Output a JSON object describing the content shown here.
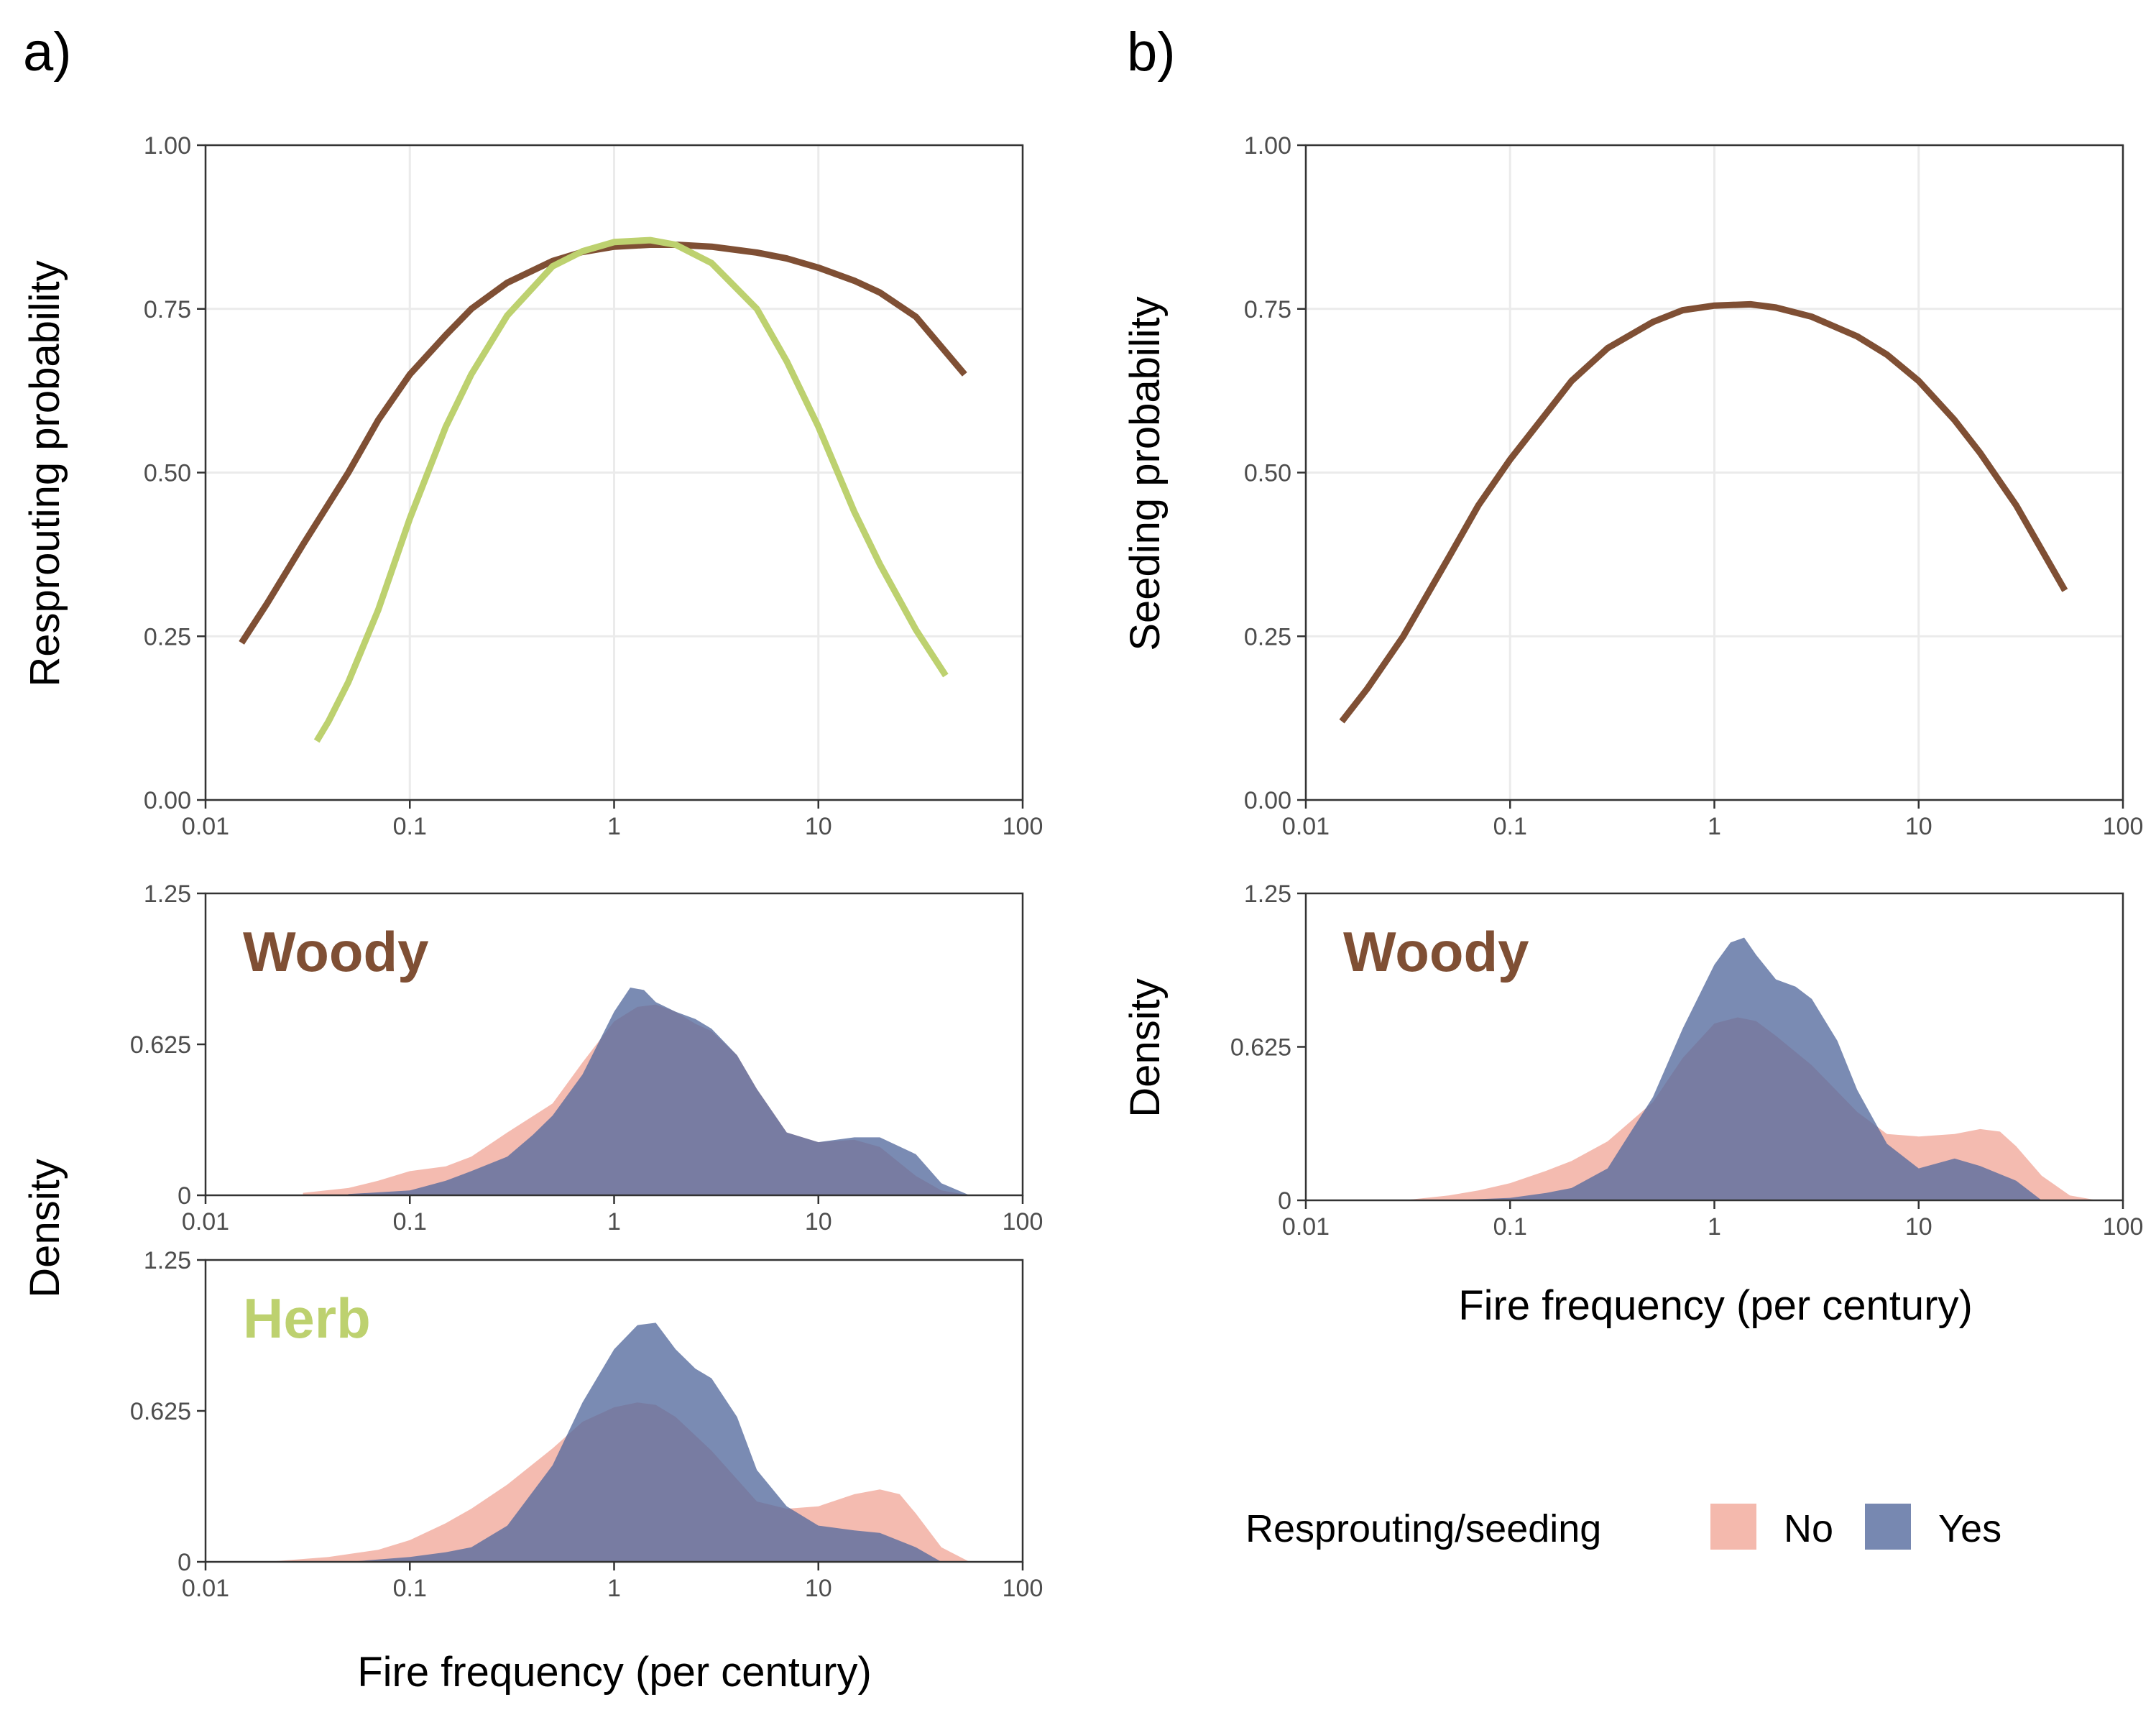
{
  "figure": {
    "panel_letters": [
      "a)",
      "b)"
    ],
    "x_axis_title": "Fire frequency (per century)",
    "legend": {
      "title": "Resprouting/seeding",
      "items": [
        "No",
        "Yes"
      ]
    },
    "colors": {
      "woody": "#7f4f34",
      "herb": "#bdd16f",
      "no": "#f0a191",
      "yes": "#556a9e",
      "overlap": "#736384",
      "grid": "#ebebeb"
    }
  },
  "chart_data": [
    {
      "id": "resprouting-curves",
      "type": "line",
      "ylabel": "Resprouting probability",
      "xlabel": "",
      "x_scale": "log10",
      "xlim": [
        0.01,
        100
      ],
      "ylim": [
        0,
        1
      ],
      "x_ticks": [
        "0.01",
        "0.1",
        "1",
        "10",
        "100"
      ],
      "y_ticks": [
        "0.00",
        "0.25",
        "0.50",
        "0.75",
        "1.00"
      ],
      "grid": true,
      "series": [
        {
          "group": "woody",
          "x": [
            0.015,
            0.02,
            0.03,
            0.05,
            0.07,
            0.1,
            0.15,
            0.2,
            0.3,
            0.5,
            0.7,
            1,
            1.5,
            2,
            3,
            5,
            7,
            10,
            15,
            20,
            30,
            52
          ],
          "y": [
            0.24,
            0.3,
            0.39,
            0.5,
            0.58,
            0.65,
            0.71,
            0.75,
            0.79,
            0.823,
            0.837,
            0.845,
            0.848,
            0.848,
            0.845,
            0.836,
            0.827,
            0.813,
            0.793,
            0.775,
            0.738,
            0.65
          ]
        },
        {
          "group": "herb",
          "x": [
            0.035,
            0.04,
            0.05,
            0.07,
            0.1,
            0.15,
            0.2,
            0.3,
            0.5,
            0.7,
            1,
            1.5,
            2,
            3,
            5,
            7,
            10,
            15,
            20,
            30,
            42
          ],
          "y": [
            0.09,
            0.12,
            0.18,
            0.29,
            0.43,
            0.57,
            0.65,
            0.74,
            0.815,
            0.838,
            0.852,
            0.855,
            0.848,
            0.82,
            0.75,
            0.67,
            0.57,
            0.44,
            0.36,
            0.26,
            0.19
          ]
        }
      ]
    },
    {
      "id": "woody-resprouting-density",
      "type": "area",
      "group_label": "Woody",
      "x_scale": "log10",
      "xlim": [
        0.01,
        100
      ],
      "ylim": [
        0,
        1.25
      ],
      "x_ticks": [
        "0.01",
        "0.1",
        "1",
        "10",
        "100"
      ],
      "y_ticks": [
        "0",
        "0.625",
        "1.25"
      ],
      "grid": false,
      "series": [
        {
          "name": "No",
          "x": [
            0.03,
            0.05,
            0.07,
            0.1,
            0.15,
            0.2,
            0.3,
            0.5,
            0.7,
            1,
            1.3,
            1.6,
            2,
            2.5,
            3,
            4,
            5,
            7,
            10,
            15,
            20,
            30,
            40,
            55
          ],
          "y": [
            0.01,
            0.03,
            0.06,
            0.1,
            0.12,
            0.16,
            0.26,
            0.38,
            0.55,
            0.72,
            0.78,
            0.79,
            0.76,
            0.71,
            0.68,
            0.58,
            0.44,
            0.26,
            0.22,
            0.23,
            0.2,
            0.08,
            0.02,
            0.0
          ]
        },
        {
          "name": "Yes",
          "x": [
            0.05,
            0.1,
            0.15,
            0.2,
            0.3,
            0.4,
            0.5,
            0.7,
            1,
            1.2,
            1.4,
            1.6,
            2,
            2.5,
            3,
            4,
            5,
            7,
            10,
            15,
            20,
            30,
            40,
            55
          ],
          "y": [
            0.005,
            0.02,
            0.06,
            0.1,
            0.16,
            0.25,
            0.33,
            0.5,
            0.76,
            0.86,
            0.85,
            0.8,
            0.76,
            0.73,
            0.69,
            0.58,
            0.44,
            0.26,
            0.22,
            0.24,
            0.24,
            0.17,
            0.05,
            0.0
          ]
        }
      ]
    },
    {
      "id": "herb-resprouting-density",
      "type": "area",
      "group_label": "Herb",
      "x_scale": "log10",
      "xlim": [
        0.01,
        100
      ],
      "ylim": [
        0,
        1.25
      ],
      "x_ticks": [
        "0.01",
        "0.1",
        "1",
        "10",
        "100"
      ],
      "y_ticks": [
        "0",
        "0.625",
        "1.25"
      ],
      "grid": false,
      "series": [
        {
          "name": "No",
          "x": [
            0.02,
            0.04,
            0.07,
            0.1,
            0.15,
            0.2,
            0.3,
            0.5,
            0.7,
            1,
            1.3,
            1.6,
            2,
            3,
            5,
            7,
            10,
            15,
            20,
            25,
            30,
            40,
            55
          ],
          "y": [
            0.0,
            0.02,
            0.05,
            0.09,
            0.16,
            0.22,
            0.32,
            0.47,
            0.58,
            0.64,
            0.66,
            0.65,
            0.6,
            0.46,
            0.25,
            0.22,
            0.23,
            0.28,
            0.3,
            0.28,
            0.2,
            0.06,
            0.0
          ]
        },
        {
          "name": "Yes",
          "x": [
            0.05,
            0.1,
            0.15,
            0.2,
            0.3,
            0.5,
            0.7,
            1,
            1.3,
            1.6,
            2,
            2.5,
            3,
            4,
            5,
            7,
            10,
            15,
            20,
            30,
            40
          ],
          "y": [
            0.0,
            0.02,
            0.04,
            0.06,
            0.15,
            0.4,
            0.66,
            0.88,
            0.98,
            0.99,
            0.88,
            0.8,
            0.76,
            0.6,
            0.38,
            0.23,
            0.15,
            0.13,
            0.12,
            0.06,
            0.0
          ]
        }
      ]
    },
    {
      "id": "seeding-curve",
      "type": "line",
      "ylabel": "Seeding probability",
      "xlabel": "",
      "x_scale": "log10",
      "xlim": [
        0.01,
        100
      ],
      "ylim": [
        0,
        1
      ],
      "x_ticks": [
        "0.01",
        "0.1",
        "1",
        "10",
        "100"
      ],
      "y_ticks": [
        "0.00",
        "0.25",
        "0.50",
        "0.75",
        "1.00"
      ],
      "grid": true,
      "series": [
        {
          "group": "woody",
          "x": [
            0.015,
            0.02,
            0.03,
            0.05,
            0.07,
            0.1,
            0.15,
            0.2,
            0.3,
            0.5,
            0.7,
            1,
            1.5,
            2,
            3,
            5,
            7,
            10,
            15,
            20,
            30,
            52
          ],
          "y": [
            0.12,
            0.17,
            0.25,
            0.37,
            0.45,
            0.52,
            0.59,
            0.64,
            0.69,
            0.73,
            0.748,
            0.755,
            0.757,
            0.752,
            0.738,
            0.708,
            0.68,
            0.64,
            0.58,
            0.53,
            0.45,
            0.32
          ]
        }
      ]
    },
    {
      "id": "woody-seeding-density",
      "type": "area",
      "group_label": "Woody",
      "ylabel": "Density",
      "x_scale": "log10",
      "xlim": [
        0.01,
        100
      ],
      "ylim": [
        0,
        1.25
      ],
      "x_ticks": [
        "0.01",
        "0.1",
        "1",
        "10",
        "100"
      ],
      "y_ticks": [
        "0",
        "0.625",
        "1.25"
      ],
      "grid": false,
      "series": [
        {
          "name": "No",
          "x": [
            0.03,
            0.05,
            0.07,
            0.1,
            0.15,
            0.2,
            0.3,
            0.5,
            0.7,
            1,
            1.3,
            1.6,
            2,
            3,
            5,
            7,
            10,
            15,
            20,
            25,
            30,
            40,
            55,
            75
          ],
          "y": [
            0.0,
            0.02,
            0.04,
            0.07,
            0.12,
            0.16,
            0.24,
            0.4,
            0.58,
            0.72,
            0.745,
            0.73,
            0.67,
            0.55,
            0.36,
            0.27,
            0.26,
            0.27,
            0.29,
            0.28,
            0.22,
            0.1,
            0.02,
            0.0
          ]
        },
        {
          "name": "Yes",
          "x": [
            0.05,
            0.1,
            0.15,
            0.2,
            0.3,
            0.5,
            0.7,
            1,
            1.2,
            1.4,
            1.6,
            2,
            2.5,
            3,
            4,
            5,
            7,
            10,
            15,
            20,
            30,
            40
          ],
          "y": [
            0.0,
            0.01,
            0.03,
            0.05,
            0.13,
            0.42,
            0.7,
            0.96,
            1.05,
            1.07,
            1.0,
            0.9,
            0.87,
            0.82,
            0.65,
            0.45,
            0.23,
            0.13,
            0.17,
            0.14,
            0.08,
            0.0
          ]
        }
      ]
    }
  ]
}
